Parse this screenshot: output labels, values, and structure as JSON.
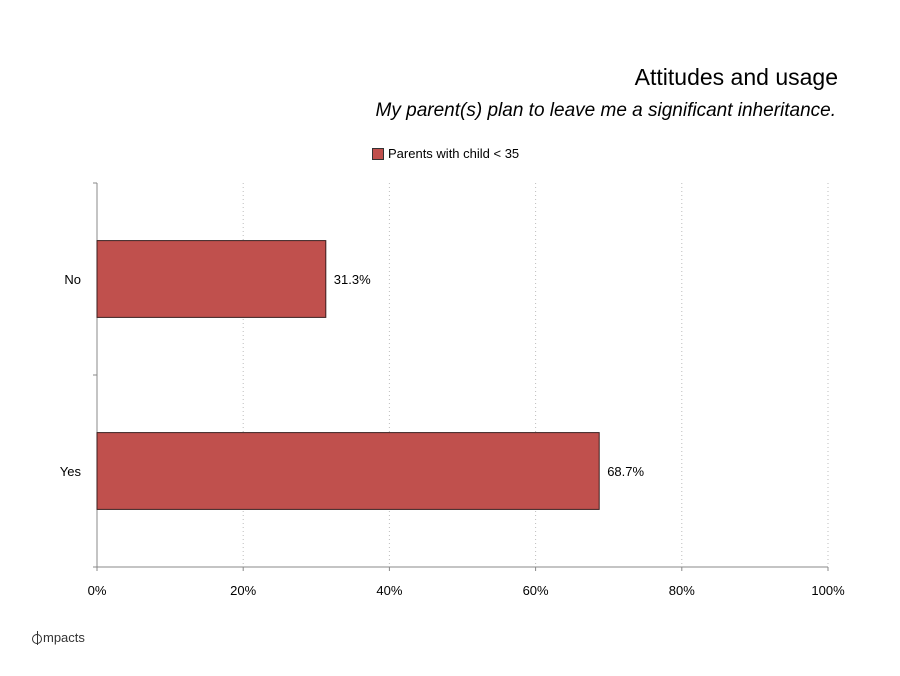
{
  "chart_data": {
    "type": "bar",
    "orientation": "horizontal",
    "title": "Attitudes and usage",
    "subtitle": "My parent(s) plan to leave me a significant inheritance.",
    "categories": [
      "No",
      "Yes"
    ],
    "series": [
      {
        "name": "Parents with child < 35",
        "values": [
          31.3,
          68.7
        ],
        "labels": [
          "31.3%",
          "68.7%"
        ],
        "color": "#c0504d"
      }
    ],
    "xlim": [
      0,
      100
    ],
    "xticks": [
      "0%",
      "20%",
      "40%",
      "60%",
      "80%",
      "100%"
    ],
    "grid": "vertical dotted",
    "legend_position": "top"
  },
  "footer": {
    "logo_text": "mpacts"
  }
}
